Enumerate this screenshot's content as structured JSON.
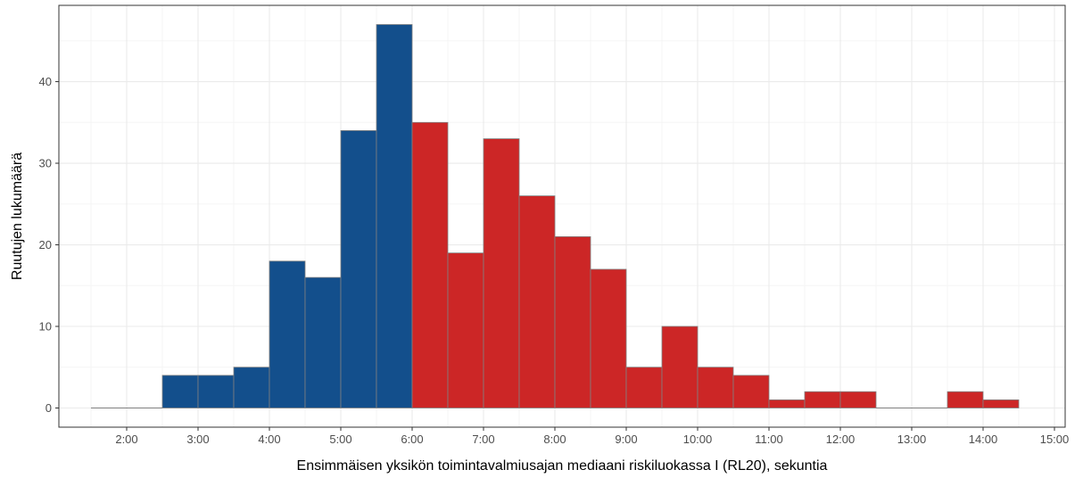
{
  "chart_data": {
    "type": "bar",
    "title": "",
    "xlabel": "Ensimmäisen yksikön toimintavalmiusajan mediaani riskiluokassa I (RL20), sekuntia",
    "ylabel": "Ruutujen lukumäärä",
    "x_unit": "minutes",
    "bin_width": 0.5,
    "xlim": [
      1.05,
      15.15
    ],
    "ylim": [
      -2.35,
      49.35
    ],
    "x_ticks": [
      2,
      3,
      4,
      5,
      6,
      7,
      8,
      9,
      10,
      11,
      12,
      13,
      14,
      15
    ],
    "x_tick_labels": [
      "2:00",
      "3:00",
      "4:00",
      "5:00",
      "6:00",
      "7:00",
      "8:00",
      "9:00",
      "10:00",
      "11:00",
      "12:00",
      "13:00",
      "14:00",
      "15:00"
    ],
    "y_ticks": [
      0,
      10,
      20,
      30,
      40
    ],
    "y_tick_labels": [
      "0",
      "10",
      "20",
      "30",
      "40"
    ],
    "grid": true,
    "bins": [
      {
        "x0": 1.5,
        "x1": 2.0,
        "value": 0,
        "color": "#134F8C"
      },
      {
        "x0": 2.0,
        "x1": 2.5,
        "value": 0,
        "color": "#134F8C"
      },
      {
        "x0": 2.5,
        "x1": 3.0,
        "value": 4,
        "color": "#134F8C"
      },
      {
        "x0": 3.0,
        "x1": 3.5,
        "value": 4,
        "color": "#134F8C"
      },
      {
        "x0": 3.5,
        "x1": 4.0,
        "value": 5,
        "color": "#134F8C"
      },
      {
        "x0": 4.0,
        "x1": 4.5,
        "value": 18,
        "color": "#134F8C"
      },
      {
        "x0": 4.5,
        "x1": 5.0,
        "value": 16,
        "color": "#134F8C"
      },
      {
        "x0": 5.0,
        "x1": 5.5,
        "value": 34,
        "color": "#134F8C"
      },
      {
        "x0": 5.5,
        "x1": 6.0,
        "value": 47,
        "color": "#134F8C"
      },
      {
        "x0": 6.0,
        "x1": 6.5,
        "value": 35,
        "color": "#CC2626"
      },
      {
        "x0": 6.5,
        "x1": 7.0,
        "value": 19,
        "color": "#CC2626"
      },
      {
        "x0": 7.0,
        "x1": 7.5,
        "value": 33,
        "color": "#CC2626"
      },
      {
        "x0": 7.5,
        "x1": 8.0,
        "value": 26,
        "color": "#CC2626"
      },
      {
        "x0": 8.0,
        "x1": 8.5,
        "value": 21,
        "color": "#CC2626"
      },
      {
        "x0": 8.5,
        "x1": 9.0,
        "value": 17,
        "color": "#CC2626"
      },
      {
        "x0": 9.0,
        "x1": 9.5,
        "value": 5,
        "color": "#CC2626"
      },
      {
        "x0": 9.5,
        "x1": 10.0,
        "value": 10,
        "color": "#CC2626"
      },
      {
        "x0": 10.0,
        "x1": 10.5,
        "value": 5,
        "color": "#CC2626"
      },
      {
        "x0": 10.5,
        "x1": 11.0,
        "value": 4,
        "color": "#CC2626"
      },
      {
        "x0": 11.0,
        "x1": 11.5,
        "value": 1,
        "color": "#CC2626"
      },
      {
        "x0": 11.5,
        "x1": 12.0,
        "value": 2,
        "color": "#CC2626"
      },
      {
        "x0": 12.0,
        "x1": 12.5,
        "value": 2,
        "color": "#CC2626"
      },
      {
        "x0": 12.5,
        "x1": 13.0,
        "value": 0,
        "color": "#CC2626"
      },
      {
        "x0": 13.0,
        "x1": 13.5,
        "value": 0,
        "color": "#CC2626"
      },
      {
        "x0": 13.5,
        "x1": 14.0,
        "value": 2,
        "color": "#CC2626"
      },
      {
        "x0": 14.0,
        "x1": 14.5,
        "value": 1,
        "color": "#CC2626"
      }
    ],
    "colors": {
      "under_6_min": "#134F8C",
      "over_6_min": "#CC2626",
      "bar_outline": "#808080",
      "panel_border": "#333333",
      "grid_major": "#EBEBEB",
      "grid_minor": "#F5F5F5"
    }
  }
}
